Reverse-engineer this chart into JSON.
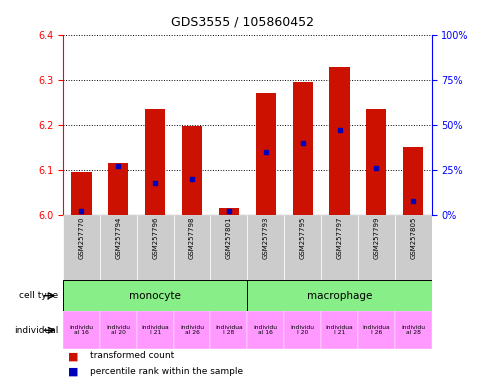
{
  "title": "GDS3555 / 105860452",
  "samples": [
    "GSM257770",
    "GSM257794",
    "GSM257796",
    "GSM257798",
    "GSM257801",
    "GSM257793",
    "GSM257795",
    "GSM257797",
    "GSM257799",
    "GSM257805"
  ],
  "transformed_counts": [
    6.095,
    6.115,
    6.235,
    6.197,
    6.015,
    6.27,
    6.295,
    6.328,
    6.235,
    6.15
  ],
  "percentile_ranks": [
    2,
    27,
    18,
    20,
    2,
    35,
    40,
    47,
    26,
    8
  ],
  "ylim_left": [
    6.0,
    6.4
  ],
  "ylim_right": [
    0,
    100
  ],
  "yticks_left": [
    6.0,
    6.1,
    6.2,
    6.3,
    6.4
  ],
  "yticks_right": [
    0,
    25,
    50,
    75,
    100
  ],
  "ytick_labels_right": [
    "0%",
    "25%",
    "50%",
    "75%",
    "100%"
  ],
  "bar_color": "#cc1100",
  "blue_color": "#0000bb",
  "base": 6.0,
  "cell_type_color": "#88ee88",
  "individual_color": "#ff99ff",
  "individual_labels": [
    "individu\nal 16",
    "individu\nal 20",
    "individua\nl 21",
    "individu\nal 26",
    "individua\nl 28",
    "individu\nal 16",
    "individu\nl 20",
    "individua\nl 21",
    "individua\nl 26",
    "individu\nal 28"
  ],
  "sample_bg_color": "#cccccc",
  "legend": [
    {
      "label": "transformed count",
      "color": "#cc1100"
    },
    {
      "label": "percentile rank within the sample",
      "color": "#0000bb"
    }
  ]
}
